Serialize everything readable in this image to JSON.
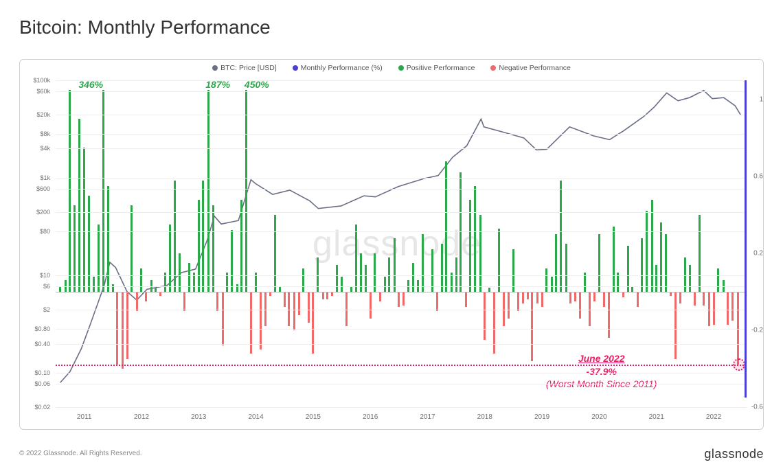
{
  "title": "Bitcoin: Monthly Performance",
  "legend": {
    "price": {
      "label": "BTC: Price [USD]",
      "color": "#6a6f85"
    },
    "monthly": {
      "label": "Monthly Performance (%)",
      "color": "#4a3fd4"
    },
    "positive": {
      "label": "Positive Performance",
      "color": "#2ba84a"
    },
    "negative": {
      "label": "Negative Performance",
      "color": "#ef6b6b"
    }
  },
  "watermark": "glassnode",
  "footer_left": "© 2022 Glassnode. All Rights Reserved.",
  "footer_right": "glassnode",
  "chart": {
    "type": "combo-bar-line-logy",
    "background_color": "#ffffff",
    "grid_color": "#efefef",
    "y_left": {
      "scale": "log",
      "min": 0.02,
      "max": 100000,
      "ticks": [
        {
          "v": 100000,
          "label": "$100k"
        },
        {
          "v": 60000,
          "label": "$60k"
        },
        {
          "v": 20000,
          "label": "$20k"
        },
        {
          "v": 8000,
          "label": "$8k"
        },
        {
          "v": 4000,
          "label": "$4k"
        },
        {
          "v": 1000,
          "label": "$1k"
        },
        {
          "v": 600,
          "label": "$600"
        },
        {
          "v": 200,
          "label": "$200"
        },
        {
          "v": 80,
          "label": "$80"
        },
        {
          "v": 10,
          "label": "$10"
        },
        {
          "v": 6,
          "label": "$6"
        },
        {
          "v": 2,
          "label": "$2"
        },
        {
          "v": 0.8,
          "label": "$0.80"
        },
        {
          "v": 0.4,
          "label": "$0.40"
        },
        {
          "v": 0.1,
          "label": "$0.10"
        },
        {
          "v": 0.06,
          "label": "$0.06"
        },
        {
          "v": 0.02,
          "label": "$0.02"
        }
      ]
    },
    "y_right": {
      "scale": "linear",
      "min": -0.6,
      "max": 1.1,
      "zero": 0,
      "ticks": [
        {
          "v": 1.0,
          "label": "1"
        },
        {
          "v": 0.6,
          "label": "0.6"
        },
        {
          "v": 0.2,
          "label": "0.2"
        },
        {
          "v": -0.2,
          "label": "-0.2"
        },
        {
          "v": -0.6,
          "label": "-0.6"
        }
      ]
    },
    "x_axis": {
      "start_year": 2010.5,
      "end_year": 2022.6,
      "tick_years": [
        2011,
        2012,
        2013,
        2014,
        2015,
        2016,
        2017,
        2018,
        2019,
        2020,
        2021,
        2022
      ]
    },
    "bars": [
      {
        "t": 2010.58,
        "v": 0.03
      },
      {
        "t": 2010.67,
        "v": 0.06
      },
      {
        "t": 2010.75,
        "v": 1.05
      },
      {
        "t": 2010.83,
        "v": 0.45
      },
      {
        "t": 2010.92,
        "v": 0.9
      },
      {
        "t": 2011.0,
        "v": 0.75
      },
      {
        "t": 2011.08,
        "v": 0.5
      },
      {
        "t": 2011.17,
        "v": 0.08
      },
      {
        "t": 2011.25,
        "v": 0.35
      },
      {
        "t": 2011.33,
        "v": 1.05
      },
      {
        "t": 2011.42,
        "v": 0.55
      },
      {
        "t": 2011.5,
        "v": 0.04
      },
      {
        "t": 2011.58,
        "v": -0.38
      },
      {
        "t": 2011.67,
        "v": -0.4
      },
      {
        "t": 2011.75,
        "v": -0.35
      },
      {
        "t": 2011.83,
        "v": 0.45
      },
      {
        "t": 2011.92,
        "v": -0.1
      },
      {
        "t": 2012.0,
        "v": 0.12
      },
      {
        "t": 2012.08,
        "v": -0.05
      },
      {
        "t": 2012.17,
        "v": 0.06
      },
      {
        "t": 2012.25,
        "v": 0.02
      },
      {
        "t": 2012.33,
        "v": -0.02
      },
      {
        "t": 2012.42,
        "v": 0.1
      },
      {
        "t": 2012.5,
        "v": 0.35
      },
      {
        "t": 2012.58,
        "v": 0.58
      },
      {
        "t": 2012.67,
        "v": 0.2
      },
      {
        "t": 2012.75,
        "v": -0.1
      },
      {
        "t": 2012.83,
        "v": 0.15
      },
      {
        "t": 2012.92,
        "v": 0.1
      },
      {
        "t": 2013.0,
        "v": 0.48
      },
      {
        "t": 2013.08,
        "v": 0.58
      },
      {
        "t": 2013.17,
        "v": 1.05
      },
      {
        "t": 2013.25,
        "v": 0.45
      },
      {
        "t": 2013.33,
        "v": -0.1
      },
      {
        "t": 2013.42,
        "v": -0.28
      },
      {
        "t": 2013.5,
        "v": 0.1
      },
      {
        "t": 2013.58,
        "v": 0.32
      },
      {
        "t": 2013.67,
        "v": 0.04
      },
      {
        "t": 2013.75,
        "v": 0.48
      },
      {
        "t": 2013.83,
        "v": 1.05
      },
      {
        "t": 2013.92,
        "v": -0.32
      },
      {
        "t": 2014.0,
        "v": 0.1
      },
      {
        "t": 2014.08,
        "v": -0.3
      },
      {
        "t": 2014.17,
        "v": -0.18
      },
      {
        "t": 2014.25,
        "v": -0.02
      },
      {
        "t": 2014.33,
        "v": 0.4
      },
      {
        "t": 2014.42,
        "v": 0.03
      },
      {
        "t": 2014.5,
        "v": -0.08
      },
      {
        "t": 2014.58,
        "v": -0.18
      },
      {
        "t": 2014.67,
        "v": -0.2
      },
      {
        "t": 2014.75,
        "v": -0.12
      },
      {
        "t": 2014.83,
        "v": 0.12
      },
      {
        "t": 2014.92,
        "v": -0.16
      },
      {
        "t": 2015.0,
        "v": -0.32
      },
      {
        "t": 2015.08,
        "v": 0.18
      },
      {
        "t": 2015.17,
        "v": -0.04
      },
      {
        "t": 2015.25,
        "v": -0.04
      },
      {
        "t": 2015.33,
        "v": -0.02
      },
      {
        "t": 2015.42,
        "v": 0.14
      },
      {
        "t": 2015.5,
        "v": 0.08
      },
      {
        "t": 2015.58,
        "v": -0.18
      },
      {
        "t": 2015.67,
        "v": 0.03
      },
      {
        "t": 2015.75,
        "v": 0.35
      },
      {
        "t": 2015.83,
        "v": 0.2
      },
      {
        "t": 2015.92,
        "v": 0.14
      },
      {
        "t": 2016.0,
        "v": -0.14
      },
      {
        "t": 2016.08,
        "v": 0.2
      },
      {
        "t": 2016.17,
        "v": -0.05
      },
      {
        "t": 2016.25,
        "v": 0.08
      },
      {
        "t": 2016.33,
        "v": 0.18
      },
      {
        "t": 2016.42,
        "v": 0.28
      },
      {
        "t": 2016.5,
        "v": -0.08
      },
      {
        "t": 2016.58,
        "v": -0.07
      },
      {
        "t": 2016.67,
        "v": 0.06
      },
      {
        "t": 2016.75,
        "v": 0.15
      },
      {
        "t": 2016.83,
        "v": 0.06
      },
      {
        "t": 2016.92,
        "v": 0.3
      },
      {
        "t": 2017.0,
        "v": 0.0
      },
      {
        "t": 2017.08,
        "v": 0.22
      },
      {
        "t": 2017.17,
        "v": -0.1
      },
      {
        "t": 2017.25,
        "v": 0.25
      },
      {
        "t": 2017.33,
        "v": 0.68
      },
      {
        "t": 2017.42,
        "v": 0.1
      },
      {
        "t": 2017.5,
        "v": 0.18
      },
      {
        "t": 2017.58,
        "v": 0.62
      },
      {
        "t": 2017.67,
        "v": -0.08
      },
      {
        "t": 2017.75,
        "v": 0.48
      },
      {
        "t": 2017.83,
        "v": 0.55
      },
      {
        "t": 2017.92,
        "v": 0.4
      },
      {
        "t": 2018.0,
        "v": -0.25
      },
      {
        "t": 2018.08,
        "v": 0.02
      },
      {
        "t": 2018.17,
        "v": -0.32
      },
      {
        "t": 2018.25,
        "v": 0.33
      },
      {
        "t": 2018.33,
        "v": -0.18
      },
      {
        "t": 2018.42,
        "v": -0.14
      },
      {
        "t": 2018.5,
        "v": 0.22
      },
      {
        "t": 2018.58,
        "v": -0.1
      },
      {
        "t": 2018.67,
        "v": -0.06
      },
      {
        "t": 2018.75,
        "v": -0.04
      },
      {
        "t": 2018.83,
        "v": -0.36
      },
      {
        "t": 2018.92,
        "v": -0.06
      },
      {
        "t": 2019.0,
        "v": -0.08
      },
      {
        "t": 2019.08,
        "v": 0.12
      },
      {
        "t": 2019.17,
        "v": 0.08
      },
      {
        "t": 2019.25,
        "v": 0.3
      },
      {
        "t": 2019.33,
        "v": 0.58
      },
      {
        "t": 2019.42,
        "v": 0.25
      },
      {
        "t": 2019.5,
        "v": -0.06
      },
      {
        "t": 2019.58,
        "v": -0.05
      },
      {
        "t": 2019.67,
        "v": -0.14
      },
      {
        "t": 2019.75,
        "v": 0.1
      },
      {
        "t": 2019.83,
        "v": -0.18
      },
      {
        "t": 2019.92,
        "v": -0.05
      },
      {
        "t": 2020.0,
        "v": 0.3
      },
      {
        "t": 2020.08,
        "v": -0.08
      },
      {
        "t": 2020.17,
        "v": -0.24
      },
      {
        "t": 2020.25,
        "v": 0.34
      },
      {
        "t": 2020.33,
        "v": 0.1
      },
      {
        "t": 2020.42,
        "v": -0.03
      },
      {
        "t": 2020.5,
        "v": 0.24
      },
      {
        "t": 2020.58,
        "v": 0.03
      },
      {
        "t": 2020.67,
        "v": -0.08
      },
      {
        "t": 2020.75,
        "v": 0.28
      },
      {
        "t": 2020.83,
        "v": 0.42
      },
      {
        "t": 2020.92,
        "v": 0.48
      },
      {
        "t": 2021.0,
        "v": 0.14
      },
      {
        "t": 2021.08,
        "v": 0.36
      },
      {
        "t": 2021.17,
        "v": 0.3
      },
      {
        "t": 2021.25,
        "v": -0.02
      },
      {
        "t": 2021.33,
        "v": -0.35
      },
      {
        "t": 2021.42,
        "v": -0.06
      },
      {
        "t": 2021.5,
        "v": 0.18
      },
      {
        "t": 2021.58,
        "v": 0.14
      },
      {
        "t": 2021.67,
        "v": -0.07
      },
      {
        "t": 2021.75,
        "v": 0.4
      },
      {
        "t": 2021.83,
        "v": -0.07
      },
      {
        "t": 2021.92,
        "v": -0.18
      },
      {
        "t": 2022.0,
        "v": -0.17
      },
      {
        "t": 2022.08,
        "v": 0.12
      },
      {
        "t": 2022.17,
        "v": 0.06
      },
      {
        "t": 2022.25,
        "v": -0.17
      },
      {
        "t": 2022.33,
        "v": -0.15
      },
      {
        "t": 2022.42,
        "v": -0.379
      }
    ],
    "annotations_top": [
      {
        "t": 2010.9,
        "v": 1.05,
        "text": "346%",
        "color": "#2ba84a"
      },
      {
        "t": 2013.12,
        "v": 1.05,
        "text": "187%",
        "color": "#2ba84a"
      },
      {
        "t": 2013.8,
        "v": 1.05,
        "text": "450%",
        "color": "#2ba84a"
      }
    ],
    "dashed_ref": {
      "v": -0.379
    },
    "callout": {
      "t": 2020.15,
      "v": -0.38,
      "line1": "June 2022",
      "line2": "-37.9%",
      "line3": "(Worst Month Since 2011)"
    },
    "circle_marker": {
      "t": 2022.44,
      "v": -0.379
    },
    "right_edge_indicator": {
      "color": "#4a3fd4",
      "from": -0.55,
      "to": 1.1
    },
    "price_series": [
      {
        "t": 2010.58,
        "p": 0.06
      },
      {
        "t": 2010.75,
        "p": 0.1
      },
      {
        "t": 2010.95,
        "p": 0.3
      },
      {
        "t": 2011.1,
        "p": 0.9
      },
      {
        "t": 2011.35,
        "p": 6.0
      },
      {
        "t": 2011.45,
        "p": 18
      },
      {
        "t": 2011.55,
        "p": 14
      },
      {
        "t": 2011.75,
        "p": 4.5
      },
      {
        "t": 2011.92,
        "p": 3.0
      },
      {
        "t": 2012.1,
        "p": 5.0
      },
      {
        "t": 2012.45,
        "p": 6.0
      },
      {
        "t": 2012.7,
        "p": 11
      },
      {
        "t": 2012.95,
        "p": 13
      },
      {
        "t": 2013.15,
        "p": 50
      },
      {
        "t": 2013.28,
        "p": 160
      },
      {
        "t": 2013.4,
        "p": 110
      },
      {
        "t": 2013.7,
        "p": 130
      },
      {
        "t": 2013.92,
        "p": 900
      },
      {
        "t": 2014.0,
        "p": 750
      },
      {
        "t": 2014.3,
        "p": 450
      },
      {
        "t": 2014.6,
        "p": 550
      },
      {
        "t": 2014.95,
        "p": 330
      },
      {
        "t": 2015.1,
        "p": 230
      },
      {
        "t": 2015.5,
        "p": 260
      },
      {
        "t": 2015.9,
        "p": 420
      },
      {
        "t": 2016.1,
        "p": 400
      },
      {
        "t": 2016.5,
        "p": 650
      },
      {
        "t": 2016.95,
        "p": 950
      },
      {
        "t": 2017.2,
        "p": 1100
      },
      {
        "t": 2017.45,
        "p": 2600
      },
      {
        "t": 2017.7,
        "p": 4500
      },
      {
        "t": 2017.95,
        "p": 16000
      },
      {
        "t": 2018.0,
        "p": 11000
      },
      {
        "t": 2018.35,
        "p": 8500
      },
      {
        "t": 2018.7,
        "p": 6500
      },
      {
        "t": 2018.92,
        "p": 3700
      },
      {
        "t": 2019.1,
        "p": 3800
      },
      {
        "t": 2019.5,
        "p": 11000
      },
      {
        "t": 2019.92,
        "p": 7200
      },
      {
        "t": 2020.2,
        "p": 6000
      },
      {
        "t": 2020.45,
        "p": 9200
      },
      {
        "t": 2020.8,
        "p": 18000
      },
      {
        "t": 2020.98,
        "p": 28000
      },
      {
        "t": 2021.2,
        "p": 55000
      },
      {
        "t": 2021.4,
        "p": 38000
      },
      {
        "t": 2021.6,
        "p": 44000
      },
      {
        "t": 2021.85,
        "p": 62000
      },
      {
        "t": 2022.0,
        "p": 42000
      },
      {
        "t": 2022.2,
        "p": 44000
      },
      {
        "t": 2022.4,
        "p": 30000
      },
      {
        "t": 2022.5,
        "p": 19000
      }
    ],
    "line_color": "#6a6f85",
    "line_width": 1.6,
    "pos_color": "#2ba84a",
    "neg_color": "#ef6b6b"
  }
}
